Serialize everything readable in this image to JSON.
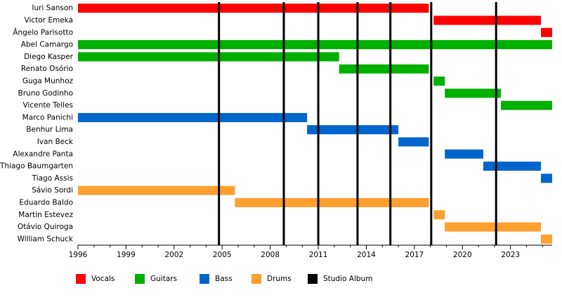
{
  "chart_data": {
    "type": "timeline",
    "categories": [
      "Iuri Sanson",
      "Victor Emeka",
      "Ângelo Parisotto",
      "Abel Camargo",
      "Diego Kasper",
      "Renato Osório",
      "Guga Munhoz",
      "Bruno Godinho",
      "Vicente Telles",
      "Marco Panichi",
      "Benhur Lima",
      "Ivan Beck",
      "Alexandre Panta",
      "Thiago Baumgarten",
      "Tiago Assis",
      "Sávio Sordi",
      "Eduardo Baldo",
      "Martin Estevez",
      "Otávio Quiroga",
      "William Schuck"
    ],
    "series": [
      {
        "name": "Vocals",
        "color": "#ff0000",
        "values": [
          [
            1996,
            2017.9
          ],
          [
            2018.2,
            2024.9
          ],
          [
            2024.9,
            2025.6
          ],
          null,
          null,
          null,
          null,
          null,
          null,
          null,
          null,
          null,
          null,
          null,
          null,
          null,
          null,
          null,
          null,
          null
        ]
      },
      {
        "name": "Guitars",
        "color": "#00b000",
        "values": [
          null,
          null,
          null,
          [
            1996,
            2025.6
          ],
          [
            1996,
            2012.3
          ],
          [
            2012.3,
            2017.9
          ],
          [
            2018.2,
            2018.9
          ],
          [
            2018.9,
            2022.4
          ],
          [
            2022.4,
            2025.6
          ],
          null,
          null,
          null,
          null,
          null,
          null,
          null,
          null,
          null,
          null,
          null
        ]
      },
      {
        "name": "Bass",
        "color": "#0066cc",
        "values": [
          null,
          null,
          null,
          null,
          null,
          null,
          null,
          null,
          null,
          [
            1996,
            2010.3
          ],
          [
            2010.3,
            2016.0
          ],
          [
            2016.0,
            2017.9
          ],
          [
            2018.9,
            2021.3
          ],
          [
            2021.3,
            2024.9
          ],
          [
            2024.9,
            2025.6
          ],
          null,
          null,
          null,
          null,
          null
        ]
      },
      {
        "name": "Drums",
        "color": "#ffa030",
        "values": [
          null,
          null,
          null,
          null,
          null,
          null,
          null,
          null,
          null,
          null,
          null,
          null,
          null,
          null,
          null,
          [
            1996,
            2005.8
          ],
          [
            2005.8,
            2017.9
          ],
          [
            2018.2,
            2018.9
          ],
          [
            2018.9,
            2024.9
          ],
          [
            2024.9,
            2025.6
          ]
        ]
      }
    ],
    "albums": {
      "name": "Studio Album",
      "color": "#000000",
      "values": [
        2004.8,
        2008.85,
        2011.0,
        2013.45,
        2015.5,
        2018.05,
        2022.1
      ]
    },
    "xlim": [
      1996,
      2025.6
    ],
    "xticks": [
      1996,
      1999,
      2002,
      2005,
      2008,
      2011,
      2014,
      2017,
      2020,
      2023
    ],
    "xminorticks": [
      1997,
      1998,
      2000,
      2001,
      2003,
      2004,
      2006,
      2007,
      2009,
      2010,
      2012,
      2013,
      2015,
      2016,
      2018,
      2019,
      2021,
      2022,
      2024,
      2025
    ]
  }
}
